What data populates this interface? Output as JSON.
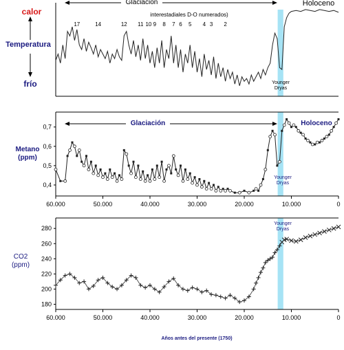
{
  "colors": {
    "younger_dryas_band": "#a6e3f5",
    "label_dark_blue": "#1a1a80",
    "label_red": "#d81818",
    "line": "#222222"
  },
  "x_axis": {
    "ticks": [
      {
        "value": 60000,
        "label": "60.000"
      },
      {
        "value": 50000,
        "label": "50.000"
      },
      {
        "value": 40000,
        "label": "40.000"
      },
      {
        "value": 30000,
        "label": "30.000"
      },
      {
        "value": 20000,
        "label": "20.000"
      },
      {
        "value": 10000,
        "label": "10.000"
      },
      {
        "value": 0,
        "label": "0"
      }
    ],
    "title": "Años antes del presente (1750)"
  },
  "chart_data": [
    {
      "type": "line",
      "id": "temperature",
      "ylabel": "Temperatura",
      "y_top_label": "calor",
      "y_bottom_label": "frío",
      "period_left": "Glaciación",
      "period_right": "Holoceno",
      "annotation": "interestadiales D-O numerados)",
      "band_label_lines": [
        "Younger",
        "Dryas"
      ],
      "xlim": [
        60000,
        0
      ],
      "ylim": [
        0,
        1
      ],
      "x": [
        60000,
        59500,
        59000,
        58500,
        58000,
        57500,
        57000,
        56500,
        56000,
        55500,
        55000,
        54500,
        54000,
        53500,
        53000,
        52500,
        52000,
        51500,
        51000,
        50500,
        50000,
        49500,
        49000,
        48500,
        48000,
        47500,
        47000,
        46500,
        46000,
        45500,
        45000,
        44500,
        44000,
        43500,
        43000,
        42500,
        42000,
        41500,
        41000,
        40500,
        40000,
        39500,
        39000,
        38500,
        38000,
        37500,
        37000,
        36500,
        36000,
        35500,
        35000,
        34500,
        34000,
        33500,
        33000,
        32500,
        32000,
        31500,
        31000,
        30500,
        30000,
        29500,
        29000,
        28500,
        28000,
        27500,
        27000,
        26500,
        26000,
        25500,
        25000,
        24500,
        24000,
        23500,
        23000,
        22500,
        22000,
        21500,
        21000,
        20500,
        20000,
        19500,
        19000,
        18500,
        18000,
        17500,
        17000,
        16500,
        16000,
        15500,
        15000,
        14500,
        14000,
        13500,
        13000,
        12500,
        12000,
        11500,
        11000,
        10500,
        10000,
        9000,
        8000,
        7000,
        6000,
        5000,
        4000,
        3000,
        2000,
        1000,
        0
      ],
      "values": [
        0.38,
        0.45,
        0.35,
        0.55,
        0.4,
        0.7,
        0.65,
        0.75,
        0.6,
        0.72,
        0.55,
        0.5,
        0.62,
        0.48,
        0.58,
        0.52,
        0.45,
        0.55,
        0.42,
        0.5,
        0.45,
        0.4,
        0.48,
        0.35,
        0.45,
        0.4,
        0.5,
        0.42,
        0.38,
        0.65,
        0.7,
        0.55,
        0.45,
        0.6,
        0.42,
        0.55,
        0.38,
        0.62,
        0.4,
        0.55,
        0.35,
        0.48,
        0.3,
        0.52,
        0.35,
        0.6,
        0.3,
        0.5,
        0.4,
        0.65,
        0.35,
        0.55,
        0.3,
        0.5,
        0.25,
        0.45,
        0.35,
        0.55,
        0.3,
        0.48,
        0.25,
        0.4,
        0.2,
        0.45,
        0.28,
        0.38,
        0.22,
        0.42,
        0.18,
        0.35,
        0.2,
        0.3,
        0.15,
        0.28,
        0.18,
        0.25,
        0.12,
        0.22,
        0.1,
        0.2,
        0.15,
        0.18,
        0.12,
        0.22,
        0.15,
        0.2,
        0.25,
        0.18,
        0.28,
        0.22,
        0.3,
        0.35,
        0.55,
        0.68,
        0.62,
        0.3,
        0.28,
        0.75,
        0.85,
        0.9,
        0.92,
        0.93,
        0.92,
        0.94,
        0.93,
        0.92,
        0.94,
        0.93,
        0.92,
        0.93,
        0.91
      ],
      "do_labels": [
        {
          "label": "17",
          "x": 55500
        },
        {
          "label": "14",
          "x": 51000
        },
        {
          "label": "12",
          "x": 45500
        },
        {
          "label": "11",
          "x": 42000
        },
        {
          "label": "10",
          "x": 40300
        },
        {
          "label": "9",
          "x": 39000
        },
        {
          "label": "8",
          "x": 37000
        },
        {
          "label": "7",
          "x": 35000
        },
        {
          "label": "6",
          "x": 33500
        },
        {
          "label": "5",
          "x": 31500
        },
        {
          "label": "4",
          "x": 28500
        },
        {
          "label": "3",
          "x": 27000
        },
        {
          "label": "2",
          "x": 24000
        }
      ]
    },
    {
      "type": "line",
      "id": "methane",
      "ylabel_lines": [
        "Metano",
        "(ppm)"
      ],
      "period_left": "Glaciación",
      "period_right": "Holoceno",
      "band_label_lines": [
        "Younger",
        "Dryas"
      ],
      "xlim": [
        60000,
        0
      ],
      "ylim": [
        0.35,
        0.77
      ],
      "yticks": [
        {
          "value": 0.4,
          "label": "0,4"
        },
        {
          "value": 0.5,
          "label": "0,5"
        },
        {
          "value": 0.6,
          "label": "0,6"
        },
        {
          "value": 0.7,
          "label": "0,7"
        }
      ],
      "x": [
        60000,
        59000,
        58000,
        57500,
        57000,
        56500,
        56000,
        55500,
        55000,
        54500,
        54000,
        53500,
        53000,
        52500,
        52000,
        51500,
        51000,
        50500,
        50000,
        49500,
        49000,
        48500,
        48000,
        47500,
        47000,
        46500,
        46000,
        45500,
        45000,
        44500,
        44000,
        43500,
        43000,
        42500,
        42000,
        41500,
        41000,
        40500,
        40000,
        39500,
        39000,
        38500,
        38000,
        37500,
        37000,
        36500,
        36000,
        35500,
        35000,
        34500,
        34000,
        33500,
        33000,
        32500,
        32000,
        31500,
        31000,
        30500,
        30000,
        29500,
        29000,
        28500,
        28000,
        27500,
        27000,
        26500,
        26000,
        25500,
        25000,
        24500,
        24000,
        23500,
        23000,
        22000,
        21000,
        20000,
        19000,
        18000,
        17500,
        17000,
        16500,
        16000,
        15500,
        15000,
        14500,
        14000,
        13500,
        13000,
        12500,
        12000,
        11500,
        11000,
        10500,
        10000,
        9500,
        9000,
        8500,
        8000,
        7500,
        7000,
        6500,
        6000,
        5500,
        5000,
        4500,
        4000,
        3500,
        3000,
        2500,
        2000,
        1500,
        1000,
        500,
        0
      ],
      "values": [
        0.48,
        0.42,
        0.42,
        0.55,
        0.58,
        0.62,
        0.6,
        0.55,
        0.58,
        0.52,
        0.5,
        0.55,
        0.48,
        0.52,
        0.46,
        0.5,
        0.45,
        0.48,
        0.44,
        0.46,
        0.43,
        0.48,
        0.44,
        0.46,
        0.42,
        0.45,
        0.43,
        0.58,
        0.56,
        0.5,
        0.46,
        0.52,
        0.44,
        0.5,
        0.43,
        0.47,
        0.42,
        0.45,
        0.42,
        0.48,
        0.43,
        0.5,
        0.44,
        0.52,
        0.42,
        0.48,
        0.5,
        0.46,
        0.55,
        0.48,
        0.45,
        0.5,
        0.42,
        0.48,
        0.43,
        0.46,
        0.41,
        0.44,
        0.4,
        0.43,
        0.39,
        0.42,
        0.38,
        0.41,
        0.38,
        0.4,
        0.37,
        0.39,
        0.37,
        0.38,
        0.37,
        0.38,
        0.37,
        0.36,
        0.36,
        0.37,
        0.36,
        0.37,
        0.38,
        0.37,
        0.4,
        0.43,
        0.48,
        0.58,
        0.65,
        0.68,
        0.66,
        0.5,
        0.52,
        0.68,
        0.71,
        0.74,
        0.72,
        0.7,
        0.71,
        0.7,
        0.68,
        0.67,
        0.66,
        0.64,
        0.63,
        0.62,
        0.61,
        0.61,
        0.62,
        0.62,
        0.63,
        0.64,
        0.65,
        0.66,
        0.68,
        0.7,
        0.72,
        0.74
      ]
    },
    {
      "type": "scatter",
      "id": "co2",
      "ylabel_lines": [
        "CO2",
        "(ppm)"
      ],
      "band_label_lines": [
        "Younger",
        "Dryas"
      ],
      "xlim": [
        60000,
        0
      ],
      "ylim": [
        175,
        292
      ],
      "yticks": [
        {
          "value": 180,
          "label": "180"
        },
        {
          "value": 200,
          "label": "200"
        },
        {
          "value": 220,
          "label": "220"
        },
        {
          "value": 240,
          "label": "240"
        },
        {
          "value": 260,
          "label": "260"
        },
        {
          "value": 280,
          "label": "280"
        }
      ],
      "x": [
        60000,
        59000,
        58000,
        57000,
        56000,
        55000,
        54000,
        53000,
        52000,
        51000,
        50000,
        49000,
        48000,
        47000,
        46000,
        45000,
        44000,
        43000,
        42000,
        41000,
        40000,
        39000,
        38000,
        37000,
        36000,
        35000,
        34000,
        33000,
        32000,
        31000,
        30000,
        29000,
        28000,
        27000,
        26000,
        25000,
        24000,
        23000,
        22000,
        21000,
        20000,
        19000,
        18000,
        17500,
        17000,
        16500,
        16000,
        15500,
        15000,
        14500,
        14000,
        13500,
        13000,
        12500,
        12000,
        11500,
        11000,
        10000,
        9000,
        8000,
        7000,
        6000,
        5000,
        4000,
        3000,
        2000,
        1000,
        0
      ],
      "values": [
        205,
        212,
        218,
        220,
        215,
        208,
        210,
        200,
        204,
        212,
        215,
        208,
        203,
        200,
        205,
        212,
        218,
        215,
        205,
        202,
        205,
        200,
        196,
        203,
        210,
        214,
        205,
        200,
        198,
        202,
        200,
        196,
        198,
        193,
        192,
        190,
        188,
        192,
        188,
        183,
        185,
        190,
        200,
        208,
        215,
        222,
        228,
        235,
        238,
        240,
        242,
        248,
        252,
        257,
        262,
        265,
        266,
        264,
        263,
        265,
        268,
        270,
        272,
        274,
        276,
        278,
        280,
        282
      ]
    }
  ]
}
